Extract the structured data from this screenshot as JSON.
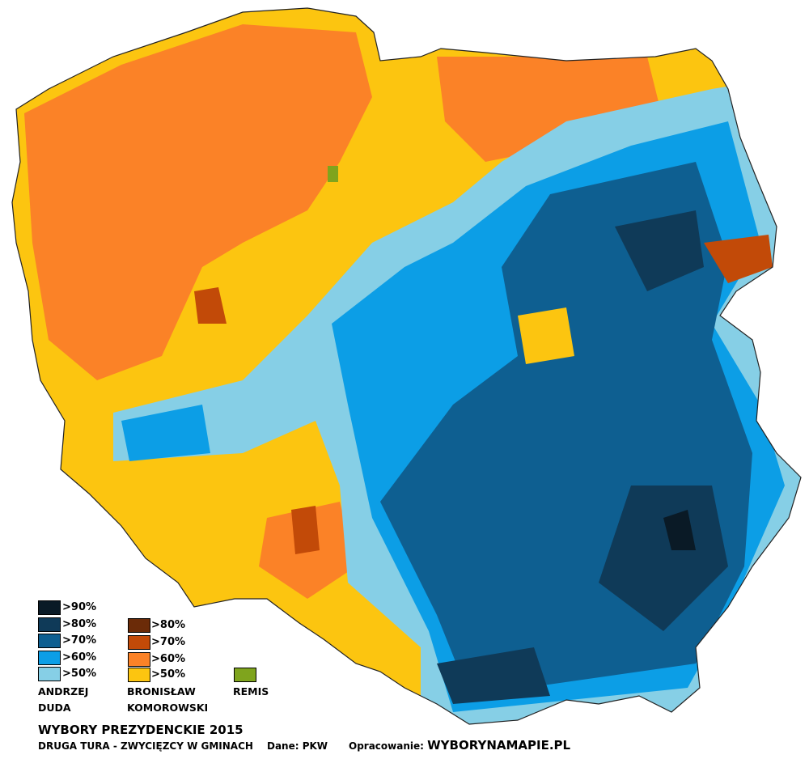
{
  "legend": {
    "duda": {
      "name_line1": "ANDRZEJ",
      "name_line2": "DUDA",
      "items": [
        {
          "label": ">90%",
          "color": "#0a1a26"
        },
        {
          "label": ">80%",
          "color": "#0f3a58"
        },
        {
          "label": ">70%",
          "color": "#0e5f91"
        },
        {
          "label": ">60%",
          "color": "#0c9ee6"
        },
        {
          "label": ">50%",
          "color": "#86cfe6"
        }
      ]
    },
    "komorowski": {
      "name_line1": "BRONISŁAW",
      "name_line2": "KOMOROWSKI",
      "items": [
        {
          "label": ">80%",
          "color": "#6b2b08"
        },
        {
          "label": ">70%",
          "color": "#c24a08"
        },
        {
          "label": ">60%",
          "color": "#fb8227"
        },
        {
          "label": ">50%",
          "color": "#fcc510"
        }
      ]
    },
    "remis": {
      "label": "REMIS",
      "color": "#7fa41d"
    }
  },
  "title": "WYBORY PREZYDENCKIE 2015",
  "subtitle": "DRUGA TURA - ZWYCIĘZCY W GMINACH",
  "source": "Dane: PKW",
  "author_label": "Opracowanie:",
  "author_site": "WYBORYNAMAPIE.PL"
}
